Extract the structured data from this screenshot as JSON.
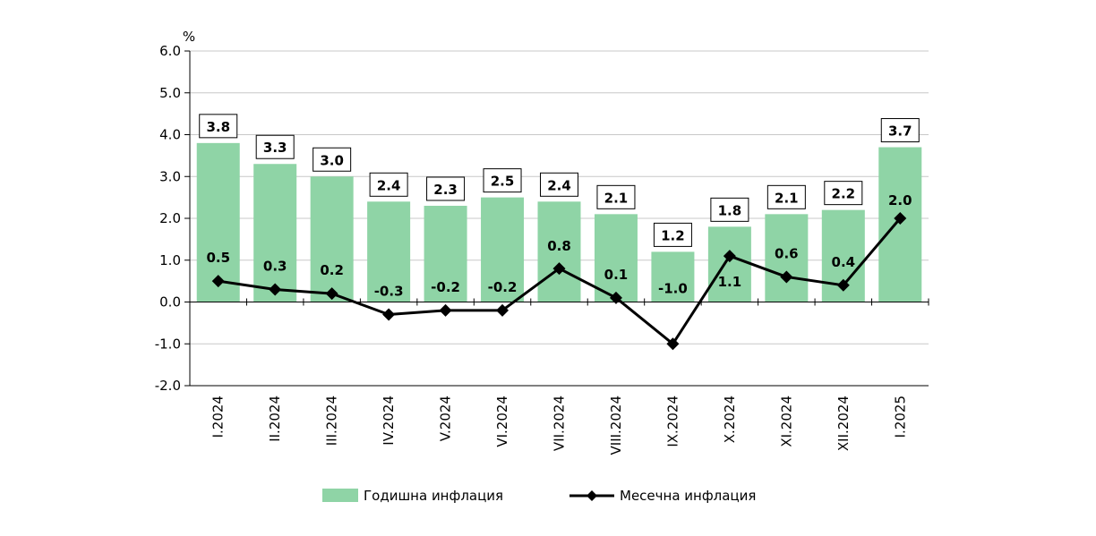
{
  "chart_data": {
    "type": "bar",
    "ylabel": "%",
    "ylim": [
      -2.0,
      6.0
    ],
    "yticks": [
      "6.0",
      "5.0",
      "4.0",
      "3.0",
      "2.0",
      "1.0",
      "0.0",
      "-1.0",
      "-2.0"
    ],
    "ytick_values": [
      6,
      5,
      4,
      3,
      2,
      1,
      0,
      -1,
      -2
    ],
    "grid": true,
    "legend_position": "bottom",
    "categories": [
      "I.2024",
      "II.2024",
      "III.2024",
      "IV.2024",
      "V.2024",
      "VI.2024",
      "VII.2024",
      "VIII.2024",
      "IX.2024",
      "X.2024",
      "XI.2024",
      "XII.2024",
      "I.2025"
    ],
    "series": [
      {
        "name": "Годишна инфлация",
        "type": "bar",
        "color": "#8fd4a6",
        "values": [
          3.8,
          3.3,
          3.0,
          2.4,
          2.3,
          2.5,
          2.4,
          2.1,
          1.2,
          1.8,
          2.1,
          2.2,
          3.7
        ],
        "labels": [
          "3.8",
          "3.3",
          "3.0",
          "2.4",
          "2.3",
          "2.5",
          "2.4",
          "2.1",
          "1.2",
          "1.8",
          "2.1",
          "2.2",
          "3.7"
        ]
      },
      {
        "name": "Месечна инфлация",
        "type": "line",
        "color": "#000000",
        "marker": "diamond",
        "values": [
          0.5,
          0.3,
          0.2,
          -0.3,
          -0.2,
          -0.2,
          0.8,
          0.1,
          -1.0,
          1.1,
          0.6,
          0.4,
          2.0
        ],
        "labels": [
          "0.5",
          "0.3",
          "0.2",
          "-0.3",
          "-0.2",
          "-0.2",
          "0.8",
          "0.1",
          "-1.0",
          "1.1",
          "0.6",
          "0.4",
          "2.0"
        ]
      }
    ]
  },
  "legend": {
    "bar_label": "Годишна инфлация",
    "line_label": "Месечна инфлация"
  }
}
